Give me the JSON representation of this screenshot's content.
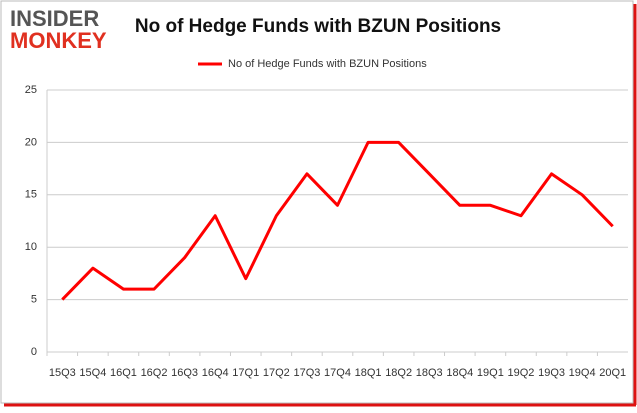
{
  "logo": {
    "line1": "INSIDER",
    "line2": "MONKEY"
  },
  "chart_data": {
    "type": "line",
    "title": "No of Hedge Funds with BZUN Positions",
    "categories": [
      "15Q3",
      "15Q4",
      "16Q1",
      "16Q2",
      "16Q3",
      "16Q4",
      "17Q1",
      "17Q2",
      "17Q3",
      "17Q4",
      "18Q1",
      "18Q2",
      "18Q3",
      "18Q4",
      "19Q1",
      "19Q2",
      "19Q3",
      "19Q4",
      "20Q1"
    ],
    "series": [
      {
        "name": "No of Hedge Funds with BZUN Positions",
        "color": "#ff0000",
        "values": [
          5,
          8,
          6,
          6,
          9,
          13,
          7,
          13,
          17,
          14,
          20,
          20,
          17,
          14,
          14,
          13,
          17,
          15,
          12
        ]
      }
    ],
    "ylim": [
      0,
      25
    ],
    "yticks": [
      0,
      5,
      10,
      15,
      20,
      25
    ],
    "grid": true,
    "legend": "top"
  }
}
